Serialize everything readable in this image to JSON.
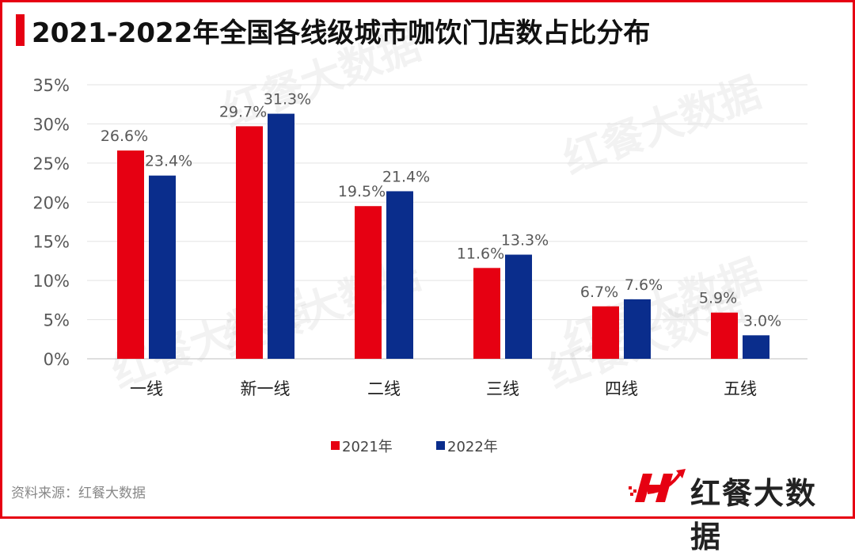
{
  "title": "2021-2022年全国各线级城市咖饮门店数占比分布",
  "source": "资料来源：红餐大数据",
  "logo_text": "红餐大数据",
  "watermark": "红餐大数据",
  "colors": {
    "accent": "#e60012",
    "series_2021": "#e60012",
    "series_2022": "#0a2d8c"
  },
  "chart_data": {
    "type": "bar",
    "title": "2021-2022年全国各线级城市咖饮门店数占比分布",
    "categories": [
      "一线",
      "新一线",
      "二线",
      "三线",
      "四线",
      "五线"
    ],
    "series": [
      {
        "name": "2021年",
        "values": [
          26.6,
          29.7,
          19.5,
          11.6,
          6.7,
          5.9
        ],
        "color": "#e60012"
      },
      {
        "name": "2022年",
        "values": [
          23.4,
          31.3,
          21.4,
          13.3,
          7.6,
          3.0
        ],
        "color": "#0a2d8c"
      }
    ],
    "ylim": [
      0,
      35
    ],
    "yticks": [
      "0%",
      "5%",
      "10%",
      "15%",
      "20%",
      "25%",
      "30%",
      "35%"
    ],
    "grid": true,
    "legend": "bottom",
    "unit": "%"
  }
}
